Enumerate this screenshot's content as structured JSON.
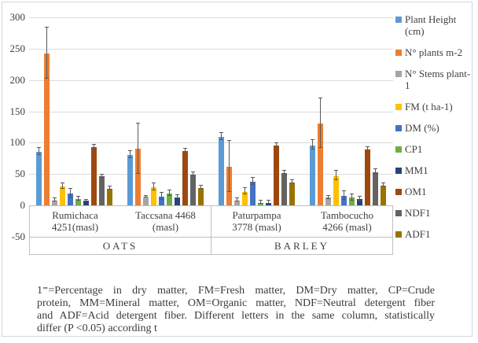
{
  "chart_data": {
    "type": "bar",
    "title": "",
    "xlabel": "",
    "ylabel": "",
    "ylim": [
      -50,
      300
    ],
    "grid": true,
    "legend_position": "right",
    "y_axis": {
      "ticks": [
        300,
        250,
        200,
        150,
        100,
        50,
        0,
        -50
      ]
    },
    "categories": [
      {
        "line1": "Rumichaca",
        "line2": "4251(masl)"
      },
      {
        "line1": "Taccsana 4468",
        "line2": "(masl)"
      },
      {
        "line1": "Paturpampa",
        "line2": "3778 (masl)"
      },
      {
        "line1": "Tambocucho",
        "line2": "4266 (masl)"
      }
    ],
    "category_groups": [
      {
        "label": "OATS",
        "span": 2
      },
      {
        "label": "BARLEY",
        "span": 2
      }
    ],
    "series": [
      {
        "name": "Plant Height (cm)",
        "color": "#5B9BD5",
        "values": [
          85,
          81,
          109,
          96
        ],
        "errors": [
          5,
          5,
          5,
          7
        ]
      },
      {
        "name": "N° plants m-2",
        "color": "#ED7D31",
        "values": [
          242,
          90,
          62,
          131
        ],
        "errors": [
          40,
          40,
          40,
          39
        ]
      },
      {
        "name": "N° Stems plant-1",
        "color": "#A5A5A5",
        "values": [
          8,
          13,
          8,
          12
        ],
        "errors": [
          2,
          1,
          2,
          2
        ]
      },
      {
        "name": "FM (t ha-1)",
        "color": "#FFC000",
        "values": [
          30,
          29,
          22,
          47
        ],
        "errors": [
          4,
          5,
          4,
          7
        ]
      },
      {
        "name": "DM (%)",
        "color": "#4472C4",
        "values": [
          19,
          14,
          38,
          15
        ],
        "errors": [
          6,
          5,
          5,
          6
        ]
      },
      {
        "name": "CP1",
        "color": "#70AD47",
        "values": [
          10,
          19,
          4,
          12
        ],
        "errors": [
          3,
          4,
          2,
          4
        ]
      },
      {
        "name": "MM1",
        "color": "#264478",
        "values": [
          7,
          13,
          4,
          10
        ],
        "errors": [
          1,
          2,
          2,
          2
        ]
      },
      {
        "name": "OM1",
        "color": "#9E480E",
        "values": [
          93,
          87,
          96,
          89
        ],
        "errors": [
          2,
          2,
          2,
          3
        ]
      },
      {
        "name": "NDF1",
        "color": "#636363",
        "values": [
          46,
          49,
          52,
          53
        ],
        "errors": [
          2,
          2,
          2,
          3
        ]
      },
      {
        "name": "ADF1",
        "color": "#997300",
        "values": [
          27,
          28,
          37,
          32
        ],
        "errors": [
          2,
          2,
          2,
          2
        ]
      }
    ],
    "error_bar_color": "#595959",
    "grid_color": "#dcdcdc"
  },
  "footnote": {
    "text": "1⁼=Percentage in dry matter, FM=Fresh matter, DM=Dry matter, CP=Crude protein, MM=Mineral matter, OM=Organic matter, NDF=Neutral detergent fiber and ADF=Acid detergent fiber. Different letters in the same column, statistically differ (P <0.05) according t",
    "lines": [
      "1⁼=Percentage in dry matter, FM=Fresh matter, DM=Dry matter, CP=Crude",
      "protein, MM=Mineral matter, OM=Organic matter, NDF=Neutral detergent fiber",
      "and ADF=Acid detergent fiber. Different letters in the same column, statistically",
      "differ (P <0.05) according t"
    ]
  }
}
